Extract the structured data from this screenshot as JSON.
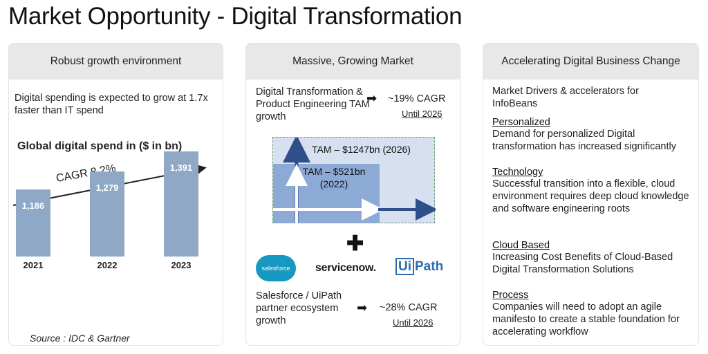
{
  "title": "Market Opportunity - Digital Transformation",
  "panel1": {
    "heading": "Robust growth environment",
    "intro": "Digital spending is expected to grow at 1.7x faster than IT spend",
    "chart_title": "Global digital spend in ($ in bn)",
    "cagr_label": "CAGR 8.2%",
    "source": "Source : IDC & Gartner"
  },
  "chart_data": {
    "type": "bar",
    "title": "Global digital spend in ($ in bn)",
    "categories": [
      "2021",
      "2022",
      "2023"
    ],
    "values": [
      1186,
      1279,
      1391
    ],
    "value_labels": [
      "1,186",
      "1,279",
      "1,391"
    ],
    "annotation": "CAGR 8.2%",
    "ylim": [
      0,
      1600
    ],
    "colors": {
      "bar": "#8ea8c6"
    }
  },
  "panel2": {
    "heading": "Massive, Growing Market",
    "tam_label": "Digital Transformation & Product Engineering TAM growth",
    "tam_cagr": "~19% CAGR",
    "tam_until": "Until 2026",
    "tam_2026": "TAM – $1247bn (2026)",
    "tam_2022_line1": "TAM – $521bn",
    "tam_2022_line2": "(2022)",
    "logos": {
      "salesforce": "salesforce",
      "servicenow": "servicenow.",
      "uipath_ui": "Ui",
      "uipath_path": "Path"
    },
    "eco_label": "Salesforce / UiPath partner ecosystem growth",
    "eco_cagr": "~28% CAGR",
    "eco_until": "Until 2026"
  },
  "panel3": {
    "heading": "Accelerating Digital Business Change",
    "intro": "Market Drivers & accelerators for InfoBeans",
    "items": [
      {
        "title": "Personalized",
        "text": "Demand for personalized Digital transformation has increased significantly"
      },
      {
        "title": "Technology",
        "text": "Successful transition into a flexible, cloud environment requires deep cloud knowledge and software engineering roots"
      },
      {
        "title": "Cloud Based",
        "text": "Increasing Cost Benefits of Cloud-Based Digital Transformation Solutions"
      },
      {
        "title": "Process",
        "text": "Companies will need to adopt an agile manifesto to create a stable foundation for accelerating workflow"
      }
    ]
  }
}
